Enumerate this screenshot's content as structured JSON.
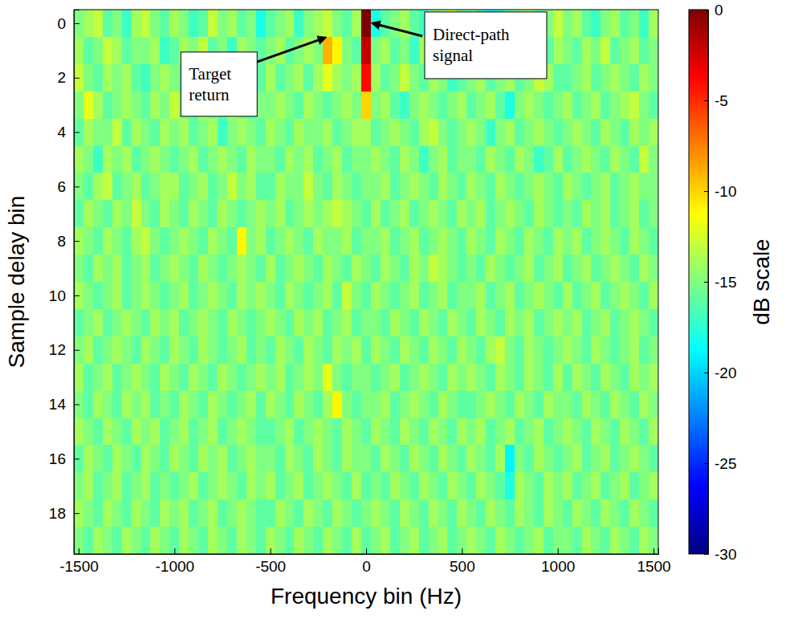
{
  "chart_data": {
    "type": "heatmap",
    "xlabel": "Frequency bin (Hz)",
    "ylabel": "Sample delay bin",
    "xlim": [
      -1525,
      1525
    ],
    "ylim": [
      -0.5,
      19.5
    ],
    "xticks": [
      -1500,
      -1000,
      -500,
      0,
      500,
      1000,
      1500
    ],
    "yticks": [
      0,
      2,
      4,
      6,
      8,
      10,
      12,
      14,
      16,
      18
    ],
    "x": [
      -1500,
      -1450,
      -1400,
      -1350,
      -1300,
      -1250,
      -1200,
      -1150,
      -1100,
      -1050,
      -1000,
      -950,
      -900,
      -850,
      -800,
      -750,
      -700,
      -650,
      -600,
      -550,
      -500,
      -450,
      -400,
      -350,
      -300,
      -250,
      -200,
      -150,
      -100,
      -50,
      0,
      50,
      100,
      150,
      200,
      250,
      300,
      350,
      400,
      450,
      500,
      550,
      600,
      650,
      700,
      750,
      800,
      850,
      900,
      950,
      1000,
      1050,
      1100,
      1150,
      1200,
      1250,
      1300,
      1350,
      1400,
      1450,
      1500
    ],
    "y": [
      0,
      1,
      2,
      3,
      4,
      5,
      6,
      7,
      8,
      9,
      10,
      11,
      12,
      13,
      14,
      15,
      16,
      17,
      18,
      19
    ],
    "values": [
      [
        -15,
        -14,
        -13,
        -16,
        -15,
        -17,
        -14,
        -13,
        -15,
        -16,
        -14,
        -15,
        -17,
        -16,
        -13,
        -15,
        -14,
        -16,
        -15,
        -18,
        -16,
        -15,
        -14,
        -17,
        -15,
        -14,
        -13,
        -15,
        -16,
        -14,
        0,
        -18,
        -16,
        -15,
        -14,
        -16,
        -17,
        -15,
        -14,
        -13,
        -16,
        -15,
        -17,
        -19,
        -18,
        -16,
        -15,
        -14,
        -16,
        -15,
        -13,
        -15,
        -14,
        -16,
        -17,
        -15,
        -14,
        -16,
        -15,
        -17,
        -14
      ],
      [
        -14,
        -16,
        -15,
        -13,
        -14,
        -16,
        -15,
        -15,
        -14,
        -17,
        -16,
        -14,
        -15,
        -13,
        -16,
        -15,
        -17,
        -14,
        -15,
        -16,
        -15,
        -14,
        -16,
        -15,
        -14,
        -15,
        -9,
        -11,
        -15,
        -16,
        -2,
        -15,
        -14,
        -16,
        -15,
        -17,
        -14,
        -15,
        -16,
        -14,
        -15,
        -16,
        -14,
        -15,
        -17,
        -16,
        -15,
        -13,
        -15,
        -16,
        -14,
        -15,
        -16,
        -14,
        -15,
        -13,
        -16,
        -15,
        -14,
        -16,
        -15
      ],
      [
        -13,
        -15,
        -16,
        -14,
        -15,
        -14,
        -16,
        -17,
        -15,
        -14,
        -15,
        -16,
        -14,
        -15,
        -15,
        -13,
        -16,
        -15,
        -14,
        -16,
        -14,
        -16,
        -15,
        -14,
        -16,
        -14,
        -12,
        -14,
        -15,
        -14,
        -4,
        -14,
        -16,
        -15,
        -13,
        -15,
        -16,
        -14,
        -15,
        -17,
        -16,
        -15,
        -14,
        -16,
        -15,
        -14,
        -16,
        -15,
        -13,
        -14,
        -16,
        -16,
        -15,
        -14,
        -16,
        -15,
        -14,
        -15,
        -16,
        -14,
        -15
      ],
      [
        -15,
        -12,
        -14,
        -16,
        -15,
        -14,
        -15,
        -16,
        -14,
        -15,
        -13,
        -15,
        -16,
        -14,
        -15,
        -16,
        -14,
        -15,
        -16,
        -15,
        -15,
        -14,
        -15,
        -16,
        -14,
        -15,
        -16,
        -15,
        -14,
        -15,
        -10,
        -15,
        -14,
        -16,
        -17,
        -15,
        -14,
        -15,
        -16,
        -15,
        -14,
        -16,
        -15,
        -14,
        -16,
        -18,
        -15,
        -14,
        -15,
        -16,
        -15,
        -14,
        -16,
        -15,
        -14,
        -16,
        -15,
        -14,
        -13,
        -15,
        -16
      ],
      [
        -16,
        -14,
        -15,
        -15,
        -13,
        -16,
        -14,
        -15,
        -16,
        -14,
        -15,
        -14,
        -16,
        -15,
        -14,
        -17,
        -15,
        -14,
        -15,
        -16,
        -14,
        -15,
        -16,
        -14,
        -15,
        -15,
        -14,
        -16,
        -15,
        -14,
        -14,
        -16,
        -15,
        -14,
        -15,
        -16,
        -14,
        -13,
        -15,
        -16,
        -15,
        -14,
        -15,
        -17,
        -15,
        -14,
        -16,
        -15,
        -14,
        -15,
        -16,
        -15,
        -14,
        -15,
        -16,
        -14,
        -15,
        -16,
        -14,
        -15,
        -14
      ],
      [
        -14,
        -15,
        -17,
        -14,
        -15,
        -14,
        -16,
        -15,
        -14,
        -15,
        -16,
        -15,
        -14,
        -16,
        -15,
        -14,
        -15,
        -16,
        -14,
        -15,
        -15,
        -16,
        -14,
        -15,
        -14,
        -16,
        -15,
        -14,
        -16,
        -15,
        -15,
        -14,
        -15,
        -16,
        -14,
        -15,
        -17,
        -15,
        -14,
        -16,
        -15,
        -15,
        -16,
        -14,
        -15,
        -16,
        -14,
        -15,
        -17,
        -16,
        -14,
        -16,
        -15,
        -14,
        -15,
        -16,
        -14,
        -15,
        -16,
        -13,
        -15
      ],
      [
        -15,
        -16,
        -14,
        -13,
        -16,
        -15,
        -14,
        -16,
        -15,
        -14,
        -14,
        -16,
        -15,
        -14,
        -16,
        -15,
        -13,
        -15,
        -14,
        -16,
        -16,
        -14,
        -15,
        -15,
        -13,
        -15,
        -16,
        -14,
        -15,
        -16,
        -15,
        -15,
        -14,
        -16,
        -15,
        -14,
        -15,
        -16,
        -14,
        -15,
        -16,
        -14,
        -15,
        -16,
        -14,
        -15,
        -16,
        -15,
        -14,
        -15,
        -16,
        -14,
        -15,
        -16,
        -15,
        -14,
        -16,
        -15,
        -14,
        -15,
        -15
      ],
      [
        -16,
        -14,
        -15,
        -16,
        -14,
        -15,
        -13,
        -15,
        -16,
        -14,
        -15,
        -16,
        -14,
        -15,
        -16,
        -14,
        -15,
        -16,
        -15,
        -14,
        -15,
        -14,
        -16,
        -15,
        -14,
        -15,
        -14,
        -13,
        -14,
        -15,
        -16,
        -14,
        -16,
        -15,
        -14,
        -16,
        -15,
        -14,
        -15,
        -16,
        -14,
        -15,
        -14,
        -16,
        -15,
        -14,
        -15,
        -16,
        -14,
        -15,
        -16,
        -15,
        -16,
        -14,
        -15,
        -14,
        -16,
        -15,
        -14,
        -16,
        -15
      ],
      [
        -14,
        -15,
        -16,
        -14,
        -15,
        -16,
        -14,
        -13,
        -15,
        -16,
        -15,
        -14,
        -15,
        -16,
        -14,
        -15,
        -16,
        -11,
        -15,
        -14,
        -16,
        -15,
        -14,
        -15,
        -16,
        -14,
        -15,
        -15,
        -14,
        -16,
        -15,
        -15,
        -14,
        -16,
        -15,
        -14,
        -16,
        -15,
        -14,
        -15,
        -16,
        -14,
        -15,
        -16,
        -14,
        -15,
        -16,
        -14,
        -15,
        -16,
        -14,
        -15,
        -14,
        -16,
        -15,
        -14,
        -15,
        -16,
        -14,
        -15,
        -16
      ],
      [
        -15,
        -16,
        -14,
        -15,
        -14,
        -16,
        -15,
        -14,
        -16,
        -15,
        -14,
        -15,
        -16,
        -14,
        -15,
        -16,
        -15,
        -14,
        -15,
        -16,
        -14,
        -16,
        -15,
        -14,
        -15,
        -16,
        -14,
        -15,
        -16,
        -14,
        -15,
        -16,
        -14,
        -15,
        -16,
        -14,
        -15,
        -13,
        -14,
        -15,
        -16,
        -15,
        -16,
        -14,
        -15,
        -16,
        -15,
        -14,
        -16,
        -15,
        -14,
        -16,
        -15,
        -14,
        -16,
        -15,
        -14,
        -15,
        -16,
        -14,
        -15
      ],
      [
        -14,
        -15,
        -16,
        -15,
        -14,
        -16,
        -15,
        -14,
        -15,
        -16,
        -15,
        -14,
        -16,
        -15,
        -14,
        -15,
        -16,
        -14,
        -15,
        -14,
        -15,
        -16,
        -14,
        -15,
        -16,
        -15,
        -14,
        -16,
        -13,
        -15,
        -16,
        -14,
        -15,
        -16,
        -15,
        -14,
        -16,
        -15,
        -14,
        -16,
        -15,
        -15,
        -14,
        -16,
        -15,
        -14,
        -16,
        -15,
        -14,
        -15,
        -16,
        -14,
        -16,
        -15,
        -14,
        -16,
        -15,
        -14,
        -15,
        -16,
        -14
      ],
      [
        -16,
        -15,
        -14,
        -16,
        -15,
        -14,
        -15,
        -16,
        -14,
        -15,
        -14,
        -16,
        -15,
        -14,
        -15,
        -16,
        -14,
        -15,
        -16,
        -15,
        -14,
        -15,
        -16,
        -14,
        -15,
        -14,
        -16,
        -15,
        -14,
        -16,
        -15,
        -15,
        -16,
        -14,
        -15,
        -16,
        -14,
        -15,
        -16,
        -14,
        -15,
        -16,
        -14,
        -15,
        -16,
        -14,
        -15,
        -14,
        -16,
        -15,
        -14,
        -15,
        -14,
        -16,
        -15,
        -14,
        -16,
        -15,
        -14,
        -15,
        -16
      ],
      [
        -15,
        -14,
        -16,
        -15,
        -14,
        -15,
        -16,
        -14,
        -15,
        -16,
        -14,
        -15,
        -16,
        -14,
        -15,
        -16,
        -15,
        -14,
        -16,
        -15,
        -16,
        -14,
        -15,
        -16,
        -14,
        -15,
        -16,
        -14,
        -15,
        -14,
        -16,
        -14,
        -15,
        -16,
        -14,
        -15,
        -16,
        -14,
        -15,
        -16,
        -14,
        -15,
        -16,
        -14,
        -13,
        -15,
        -16,
        -14,
        -15,
        -16,
        -15,
        -14,
        -15,
        -16,
        -14,
        -15,
        -16,
        -15,
        -14,
        -16,
        -15
      ],
      [
        -14,
        -16,
        -15,
        -14,
        -16,
        -15,
        -14,
        -15,
        -16,
        -14,
        -15,
        -16,
        -14,
        -15,
        -16,
        -14,
        -15,
        -16,
        -15,
        -14,
        -15,
        -14,
        -16,
        -15,
        -14,
        -15,
        -12,
        -15,
        -16,
        -15,
        -15,
        -16,
        -15,
        -14,
        -16,
        -15,
        -14,
        -15,
        -16,
        -14,
        -15,
        -14,
        -15,
        -16,
        -14,
        -15,
        -16,
        -14,
        -15,
        -16,
        -14,
        -16,
        -14,
        -15,
        -16,
        -14,
        -15,
        -16,
        -14,
        -15,
        -14
      ],
      [
        -15,
        -16,
        -14,
        -15,
        -16,
        -14,
        -15,
        -14,
        -16,
        -15,
        -16,
        -14,
        -15,
        -16,
        -14,
        -15,
        -16,
        -15,
        -14,
        -16,
        -14,
        -15,
        -16,
        -14,
        -15,
        -16,
        -14,
        -11,
        -15,
        -16,
        -15,
        -15,
        -14,
        -16,
        -15,
        -14,
        -15,
        -16,
        -14,
        -15,
        -16,
        -16,
        -15,
        -14,
        -15,
        -16,
        -14,
        -15,
        -16,
        -14,
        -15,
        -15,
        -16,
        -14,
        -15,
        -16,
        -14,
        -15,
        -16,
        -14,
        -15
      ],
      [
        -14,
        -15,
        -16,
        -14,
        -15,
        -16,
        -14,
        -15,
        -14,
        -16,
        -15,
        -14,
        -16,
        -15,
        -14,
        -16,
        -15,
        -14,
        -15,
        -16,
        -16,
        -15,
        -14,
        -16,
        -15,
        -14,
        -15,
        -16,
        -14,
        -15,
        -16,
        -14,
        -15,
        -16,
        -14,
        -15,
        -16,
        -14,
        -15,
        -16,
        -14,
        -15,
        -14,
        -16,
        -15,
        -14,
        -16,
        -15,
        -14,
        -16,
        -15,
        -14,
        -15,
        -16,
        -14,
        -15,
        -16,
        -14,
        -15,
        -16,
        -14
      ],
      [
        -16,
        -14,
        -15,
        -16,
        -14,
        -15,
        -16,
        -14,
        -15,
        -16,
        -14,
        -15,
        -16,
        -14,
        -15,
        -14,
        -16,
        -15,
        -14,
        -15,
        -15,
        -16,
        -14,
        -15,
        -16,
        -14,
        -15,
        -16,
        -14,
        -15,
        -15,
        -16,
        -14,
        -15,
        -16,
        -14,
        -15,
        -16,
        -14,
        -15,
        -16,
        -14,
        -15,
        -16,
        -14,
        -19,
        -15,
        -16,
        -14,
        -15,
        -16,
        -15,
        -14,
        -16,
        -15,
        -14,
        -16,
        -15,
        -14,
        -15,
        -16
      ],
      [
        -15,
        -14,
        -16,
        -15,
        -14,
        -16,
        -15,
        -14,
        -16,
        -15,
        -16,
        -15,
        -14,
        -16,
        -15,
        -14,
        -15,
        -16,
        -14,
        -15,
        -14,
        -16,
        -15,
        -14,
        -16,
        -15,
        -14,
        -15,
        -16,
        -14,
        -16,
        -15,
        -16,
        -14,
        -15,
        -16,
        -14,
        -15,
        -16,
        -14,
        -15,
        -16,
        -14,
        -15,
        -16,
        -18,
        -14,
        -15,
        -16,
        -14,
        -15,
        -14,
        -16,
        -15,
        -14,
        -16,
        -15,
        -14,
        -16,
        -15,
        -14
      ],
      [
        -14,
        -15,
        -16,
        -14,
        -15,
        -16,
        -14,
        -15,
        -16,
        -14,
        -15,
        -14,
        -16,
        -15,
        -14,
        -16,
        -15,
        -14,
        -15,
        -16,
        -16,
        -14,
        -15,
        -16,
        -14,
        -15,
        -16,
        -14,
        -15,
        -16,
        -15,
        -14,
        -15,
        -16,
        -14,
        -15,
        -16,
        -14,
        -15,
        -16,
        -14,
        -15,
        -16,
        -14,
        -15,
        -16,
        -14,
        -15,
        -16,
        -14,
        -15,
        -16,
        -14,
        -15,
        -16,
        -14,
        -15,
        -16,
        -14,
        -15,
        -16
      ],
      [
        -15,
        -16,
        -14,
        -15,
        -16,
        -14,
        -15,
        -16,
        -14,
        -15,
        -16,
        -14,
        -15,
        -16,
        -14,
        -15,
        -16,
        -14,
        -15,
        -16,
        -14,
        -15,
        -16,
        -14,
        -15,
        -16,
        -14,
        -15,
        -16,
        -14,
        -16,
        -15,
        -14,
        -16,
        -15,
        -14,
        -16,
        -15,
        -14,
        -16,
        -15,
        -14,
        -15,
        -16,
        -14,
        -15,
        -16,
        -15,
        -14,
        -16,
        -15,
        -15,
        -16,
        -14,
        -15,
        -16,
        -14,
        -15,
        -16,
        -14,
        -15
      ]
    ],
    "colorbar": {
      "range": [
        -30,
        0
      ],
      "ticks": [
        0,
        -5,
        -10,
        -15,
        -20,
        -25,
        -30
      ],
      "label": "dB scale"
    },
    "annotations": [
      {
        "text": "Target return",
        "x": -200,
        "y": 1
      },
      {
        "text": "Direct-path signal",
        "x": 0,
        "y": 0
      }
    ]
  }
}
